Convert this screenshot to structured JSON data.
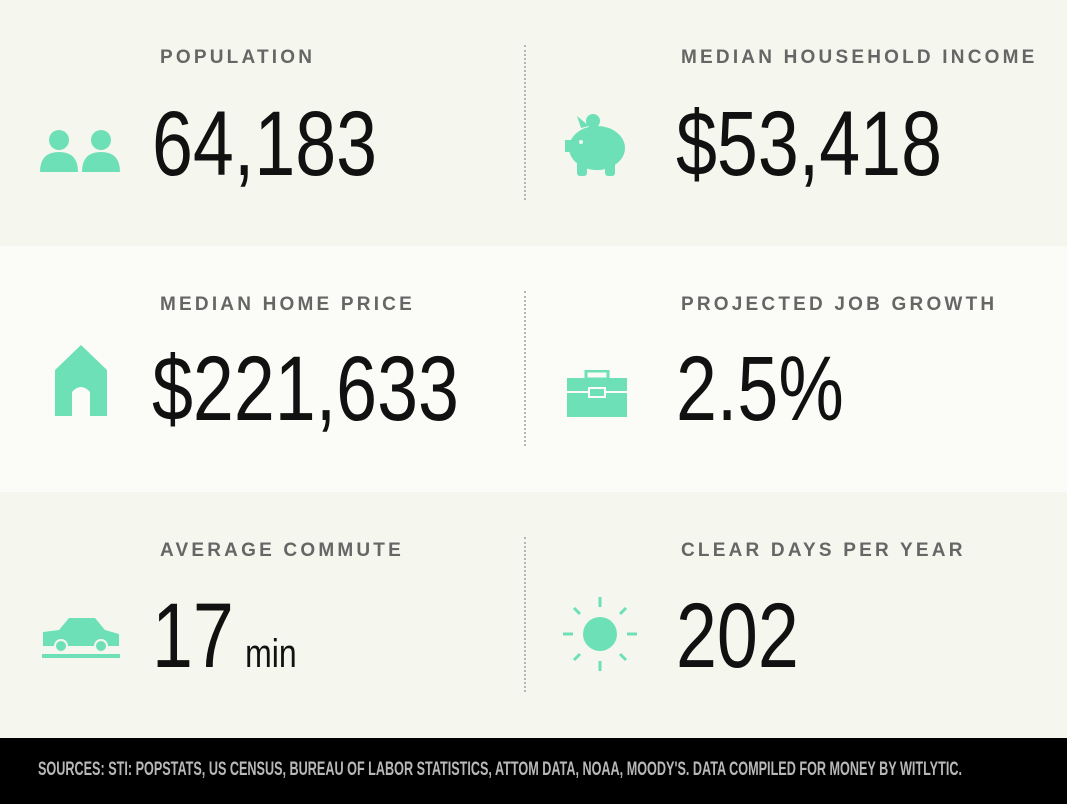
{
  "stats": [
    {
      "label": "POPULATION",
      "value": "64,183"
    },
    {
      "label": "MEDIAN HOUSEHOLD INCOME",
      "value": "$53,418"
    },
    {
      "label": "MEDIAN HOME PRICE",
      "value": "$221,633"
    },
    {
      "label": "PROJECTED JOB GROWTH",
      "value": "2.5%"
    },
    {
      "label": "AVERAGE COMMUTE",
      "value": "17",
      "unit": "min"
    },
    {
      "label": "CLEAR DAYS PER YEAR",
      "value": "202"
    }
  ],
  "footer": "SOURCES: STI: POPSTATS, US CENSUS, BUREAU OF LABOR STATISTICS, ATTOM DATA, NOAA, MOODY'S. DATA COMPILED FOR MONEY BY WITLYTIC."
}
